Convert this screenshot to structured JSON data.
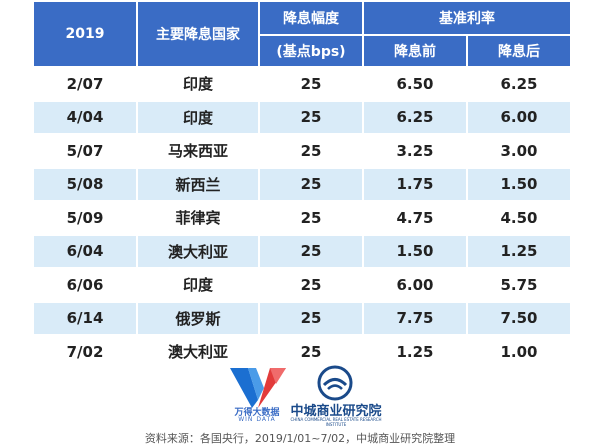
{
  "table": {
    "headers": {
      "year": "2019",
      "country": "主要降息国家",
      "cut": "降息幅度",
      "cut_unit": "(基点bps)",
      "base_rate": "基准利率",
      "before": "降息前",
      "after": "降息后"
    },
    "rows": [
      {
        "date": "2/07",
        "country": "印度",
        "cut": "25",
        "before": "6.50",
        "after": "6.25"
      },
      {
        "date": "4/04",
        "country": "印度",
        "cut": "25",
        "before": "6.25",
        "after": "6.00"
      },
      {
        "date": "5/07",
        "country": "马来西亚",
        "cut": "25",
        "before": "3.25",
        "after": "3.00"
      },
      {
        "date": "5/08",
        "country": "新西兰",
        "cut": "25",
        "before": "1.75",
        "after": "1.50"
      },
      {
        "date": "5/09",
        "country": "菲律宾",
        "cut": "25",
        "before": "4.75",
        "after": "4.50"
      },
      {
        "date": "6/04",
        "country": "澳大利亚",
        "cut": "25",
        "before": "1.50",
        "after": "1.25"
      },
      {
        "date": "6/06",
        "country": "印度",
        "cut": "25",
        "before": "6.00",
        "after": "5.75"
      },
      {
        "date": "6/14",
        "country": "俄罗斯",
        "cut": "25",
        "before": "7.75",
        "after": "7.50"
      },
      {
        "date": "7/02",
        "country": "澳大利亚",
        "cut": "25",
        "before": "1.25",
        "after": "1.00"
      }
    ]
  },
  "logos": {
    "wind_name": "万得大数据",
    "wind_sub": "WIN DATA",
    "zc_name": "中城商业研究院",
    "zc_sub": "CHINA COMMERCIAL REAL ESTATE RESEARCH INSTITUTE"
  },
  "source": "资料来源：各国央行，2019/1/01~7/02，中城商业研究院整理",
  "colors": {
    "header_bg": "#3a6cc5",
    "band_bg": "#d9ebf8"
  }
}
